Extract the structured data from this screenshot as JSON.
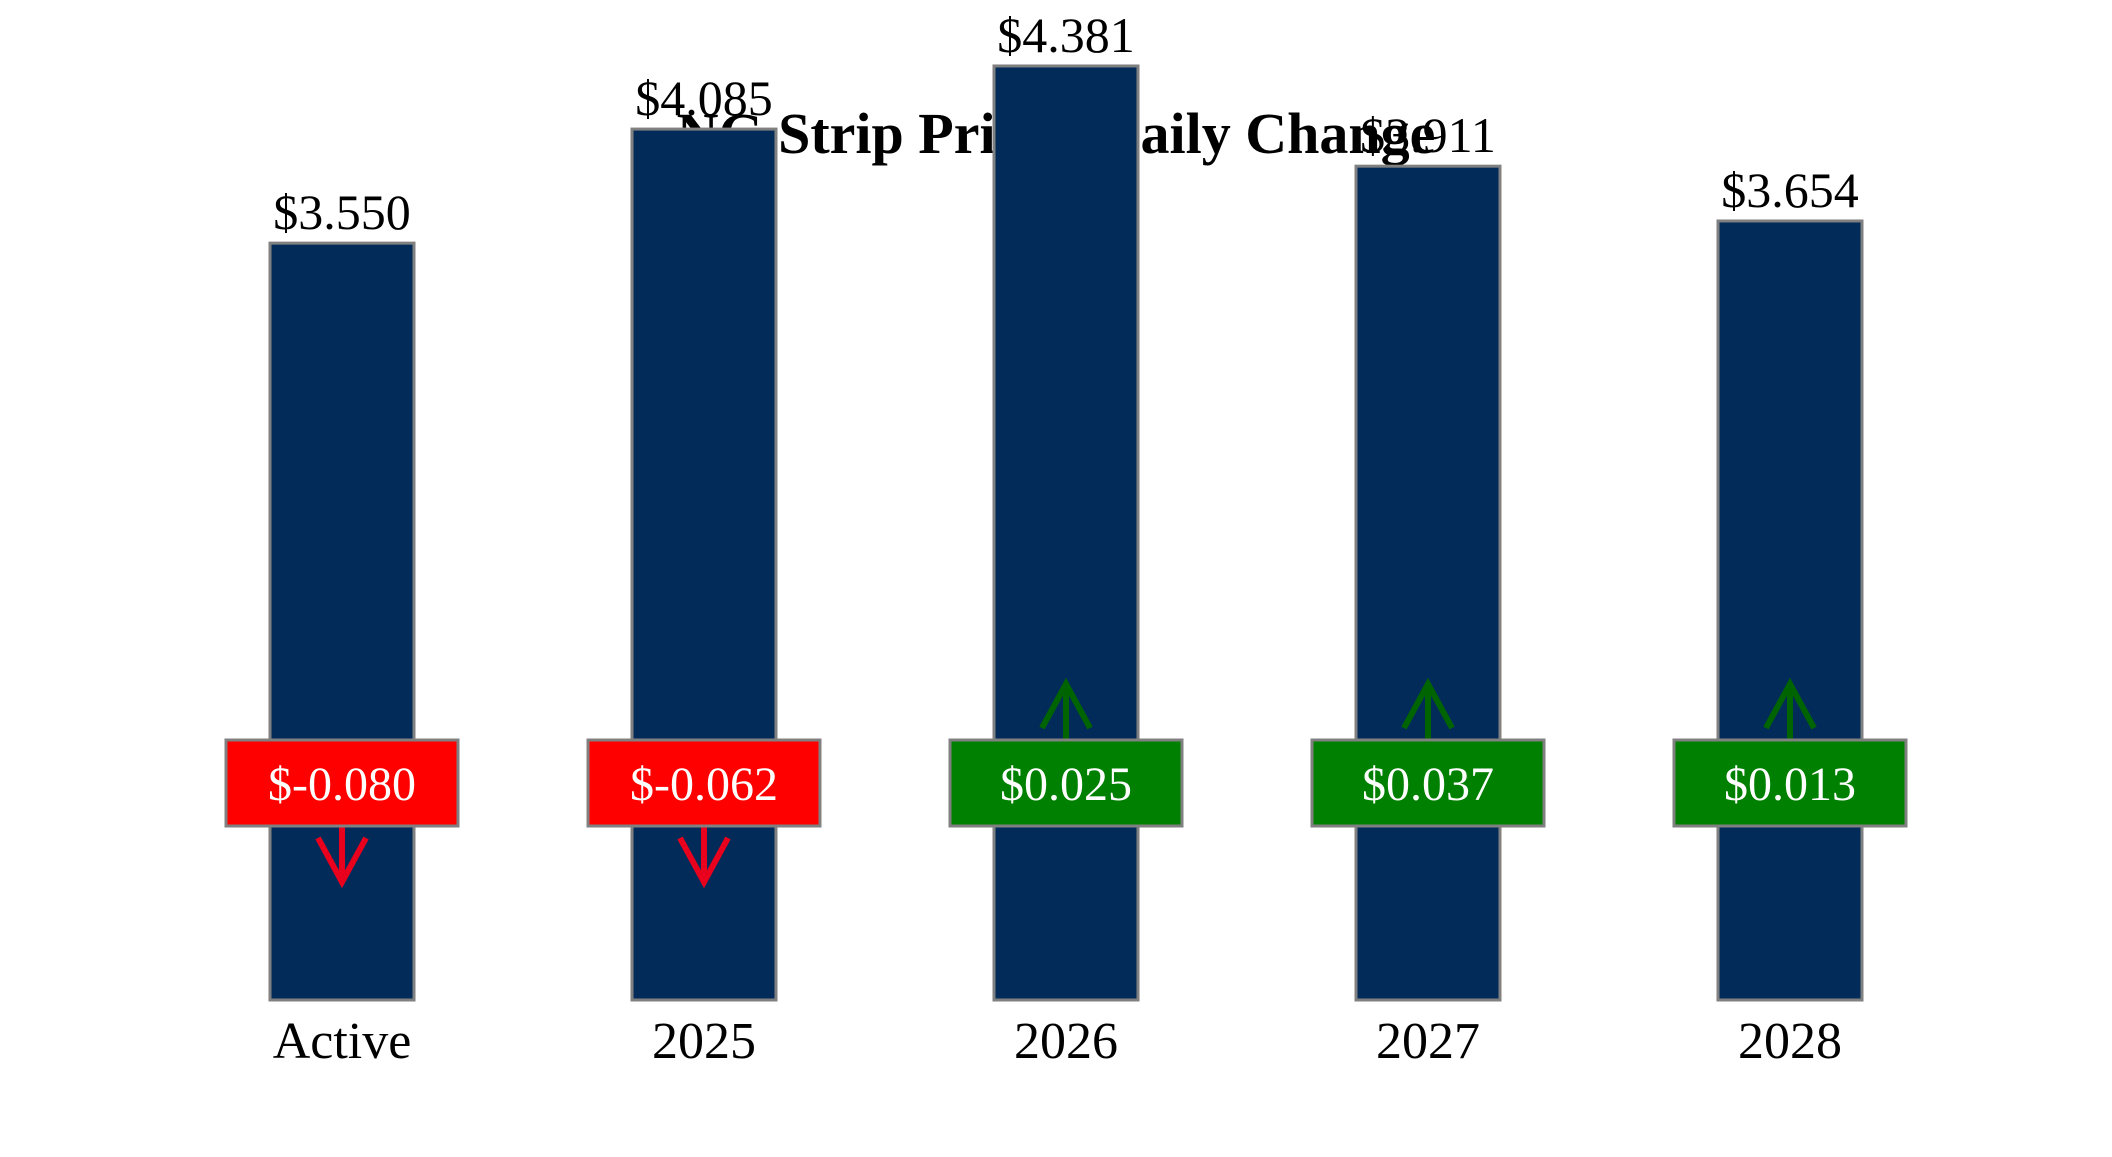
{
  "chart_data": {
    "type": "bar",
    "title": "NG Strip Prices, Daily Change",
    "xlabel": "",
    "ylabel": "",
    "categories": [
      "Active",
      "2025",
      "2026",
      "2027",
      "2028"
    ],
    "series": [
      {
        "values": [
          3.55,
          4.085,
          4.381,
          3.911,
          3.654
        ]
      }
    ],
    "value_labels": [
      "$3.550",
      "$4.085",
      "$4.381",
      "$3.911",
      "$3.654"
    ],
    "changes": [
      -0.08,
      -0.062,
      0.025,
      0.037,
      0.013
    ],
    "change_labels": [
      "$-0.080",
      "$-0.062",
      "$0.025",
      "$0.037",
      "$0.013"
    ],
    "change_direction": [
      "down",
      "down",
      "up",
      "up",
      "up"
    ],
    "ylim": [
      0,
      4.8
    ],
    "grid": false,
    "legend": "none",
    "colors": {
      "bar": "#032b5a",
      "bar_edge": "#808080",
      "negative": "#ff0000",
      "positive": "#008000",
      "arrow_negative": "#e8001c",
      "arrow_positive": "#006400",
      "text": "#000000",
      "badge_text": "#ffffff",
      "badge_edge": "#808080"
    }
  }
}
